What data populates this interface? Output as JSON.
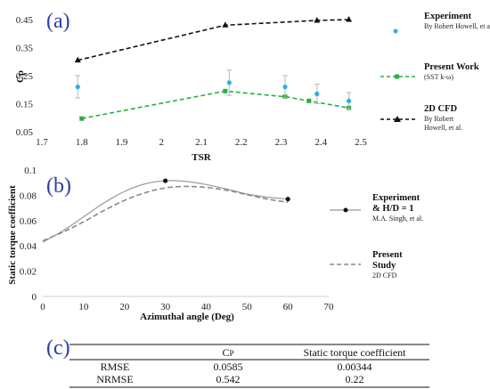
{
  "panel_labels": [
    "(a)",
    "(b)",
    "(c)"
  ],
  "chart_data": [
    {
      "type": "scatter",
      "panel": "(a)",
      "ylabel": "Cp",
      "xlabel": "TSR",
      "xlim": [
        1.7,
        2.5
      ],
      "ylim": [
        0.05,
        0.45
      ],
      "x_ticks": [
        "1.7",
        "1.8",
        "1.9",
        "2",
        "2.1",
        "2.2",
        "2.3",
        "2.4",
        "2.5"
      ],
      "y_ticks": [
        "0.05",
        "0.15",
        "0.25",
        "0.35",
        "0.45"
      ],
      "grid": false,
      "legend_position": "right",
      "series": [
        {
          "name": "Experiment",
          "note": "By Robert Howell, et al.",
          "style": "points-with-error-bars",
          "color": "#2ab0e0",
          "x": [
            1.79,
            2.17,
            2.31,
            2.39,
            2.47
          ],
          "y": [
            0.21,
            0.225,
            0.21,
            0.185,
            0.16
          ],
          "err": [
            0.04,
            0.045,
            0.04,
            0.035,
            0.03
          ]
        },
        {
          "name": "Present Work",
          "note": "(SST k-ω)",
          "style": "dashed-line-square-markers",
          "color": "#2ab040",
          "x": [
            1.8,
            2.16,
            2.31,
            2.37,
            2.47
          ],
          "y": [
            0.097,
            0.195,
            0.175,
            0.16,
            0.135
          ]
        },
        {
          "name": "2D CFD",
          "note": "By Robert Howell, et al.",
          "style": "dashed-line-triangle-markers",
          "color": "#111111",
          "x": [
            1.79,
            2.16,
            2.39,
            2.47
          ],
          "y": [
            0.305,
            0.43,
            0.447,
            0.45
          ]
        }
      ]
    },
    {
      "type": "line",
      "panel": "(b)",
      "ylabel": "Static torque coefficient",
      "xlabel": "Azimuthal angle (Deg)",
      "xlim": [
        0,
        70
      ],
      "ylim": [
        0,
        0.1
      ],
      "x_ticks": [
        "0",
        "10",
        "20",
        "30",
        "40",
        "50",
        "60",
        "70"
      ],
      "y_ticks": [
        "0",
        "0.02",
        "0.04",
        "0.06",
        "0.08",
        "0.1"
      ],
      "grid": false,
      "legend_position": "right",
      "series": [
        {
          "name": "Experiment & H/D = 1",
          "note": "M.A. Singh, et al.",
          "style": "solid-line-dot-markers",
          "color": "#9a9a9a",
          "x": [
            0,
            5,
            10,
            15,
            20,
            25,
            30,
            35,
            40,
            45,
            50,
            55,
            60
          ],
          "y": [
            0.043,
            0.052,
            0.063,
            0.074,
            0.083,
            0.089,
            0.0915,
            0.091,
            0.0885,
            0.085,
            0.081,
            0.0785,
            0.077
          ],
          "markers_x": [
            30,
            60
          ],
          "markers_y": [
            0.0915,
            0.077
          ]
        },
        {
          "name": "Present Study",
          "note": "2D CFD",
          "style": "dashed-line",
          "color": "#8a8a8a",
          "x": [
            0,
            5,
            10,
            15,
            20,
            25,
            30,
            35,
            40,
            45,
            50,
            55,
            60
          ],
          "y": [
            0.044,
            0.051,
            0.059,
            0.068,
            0.076,
            0.082,
            0.0858,
            0.087,
            0.0862,
            0.084,
            0.0805,
            0.077,
            0.0745
          ]
        }
      ]
    },
    {
      "type": "table",
      "panel": "(c)",
      "columns": [
        "",
        "Cp",
        "Static torque coefficient"
      ],
      "rows": [
        [
          "RMSE",
          "0.0585",
          "0.00344"
        ],
        [
          "NRMSE",
          "0.542",
          "0.22"
        ]
      ]
    }
  ]
}
